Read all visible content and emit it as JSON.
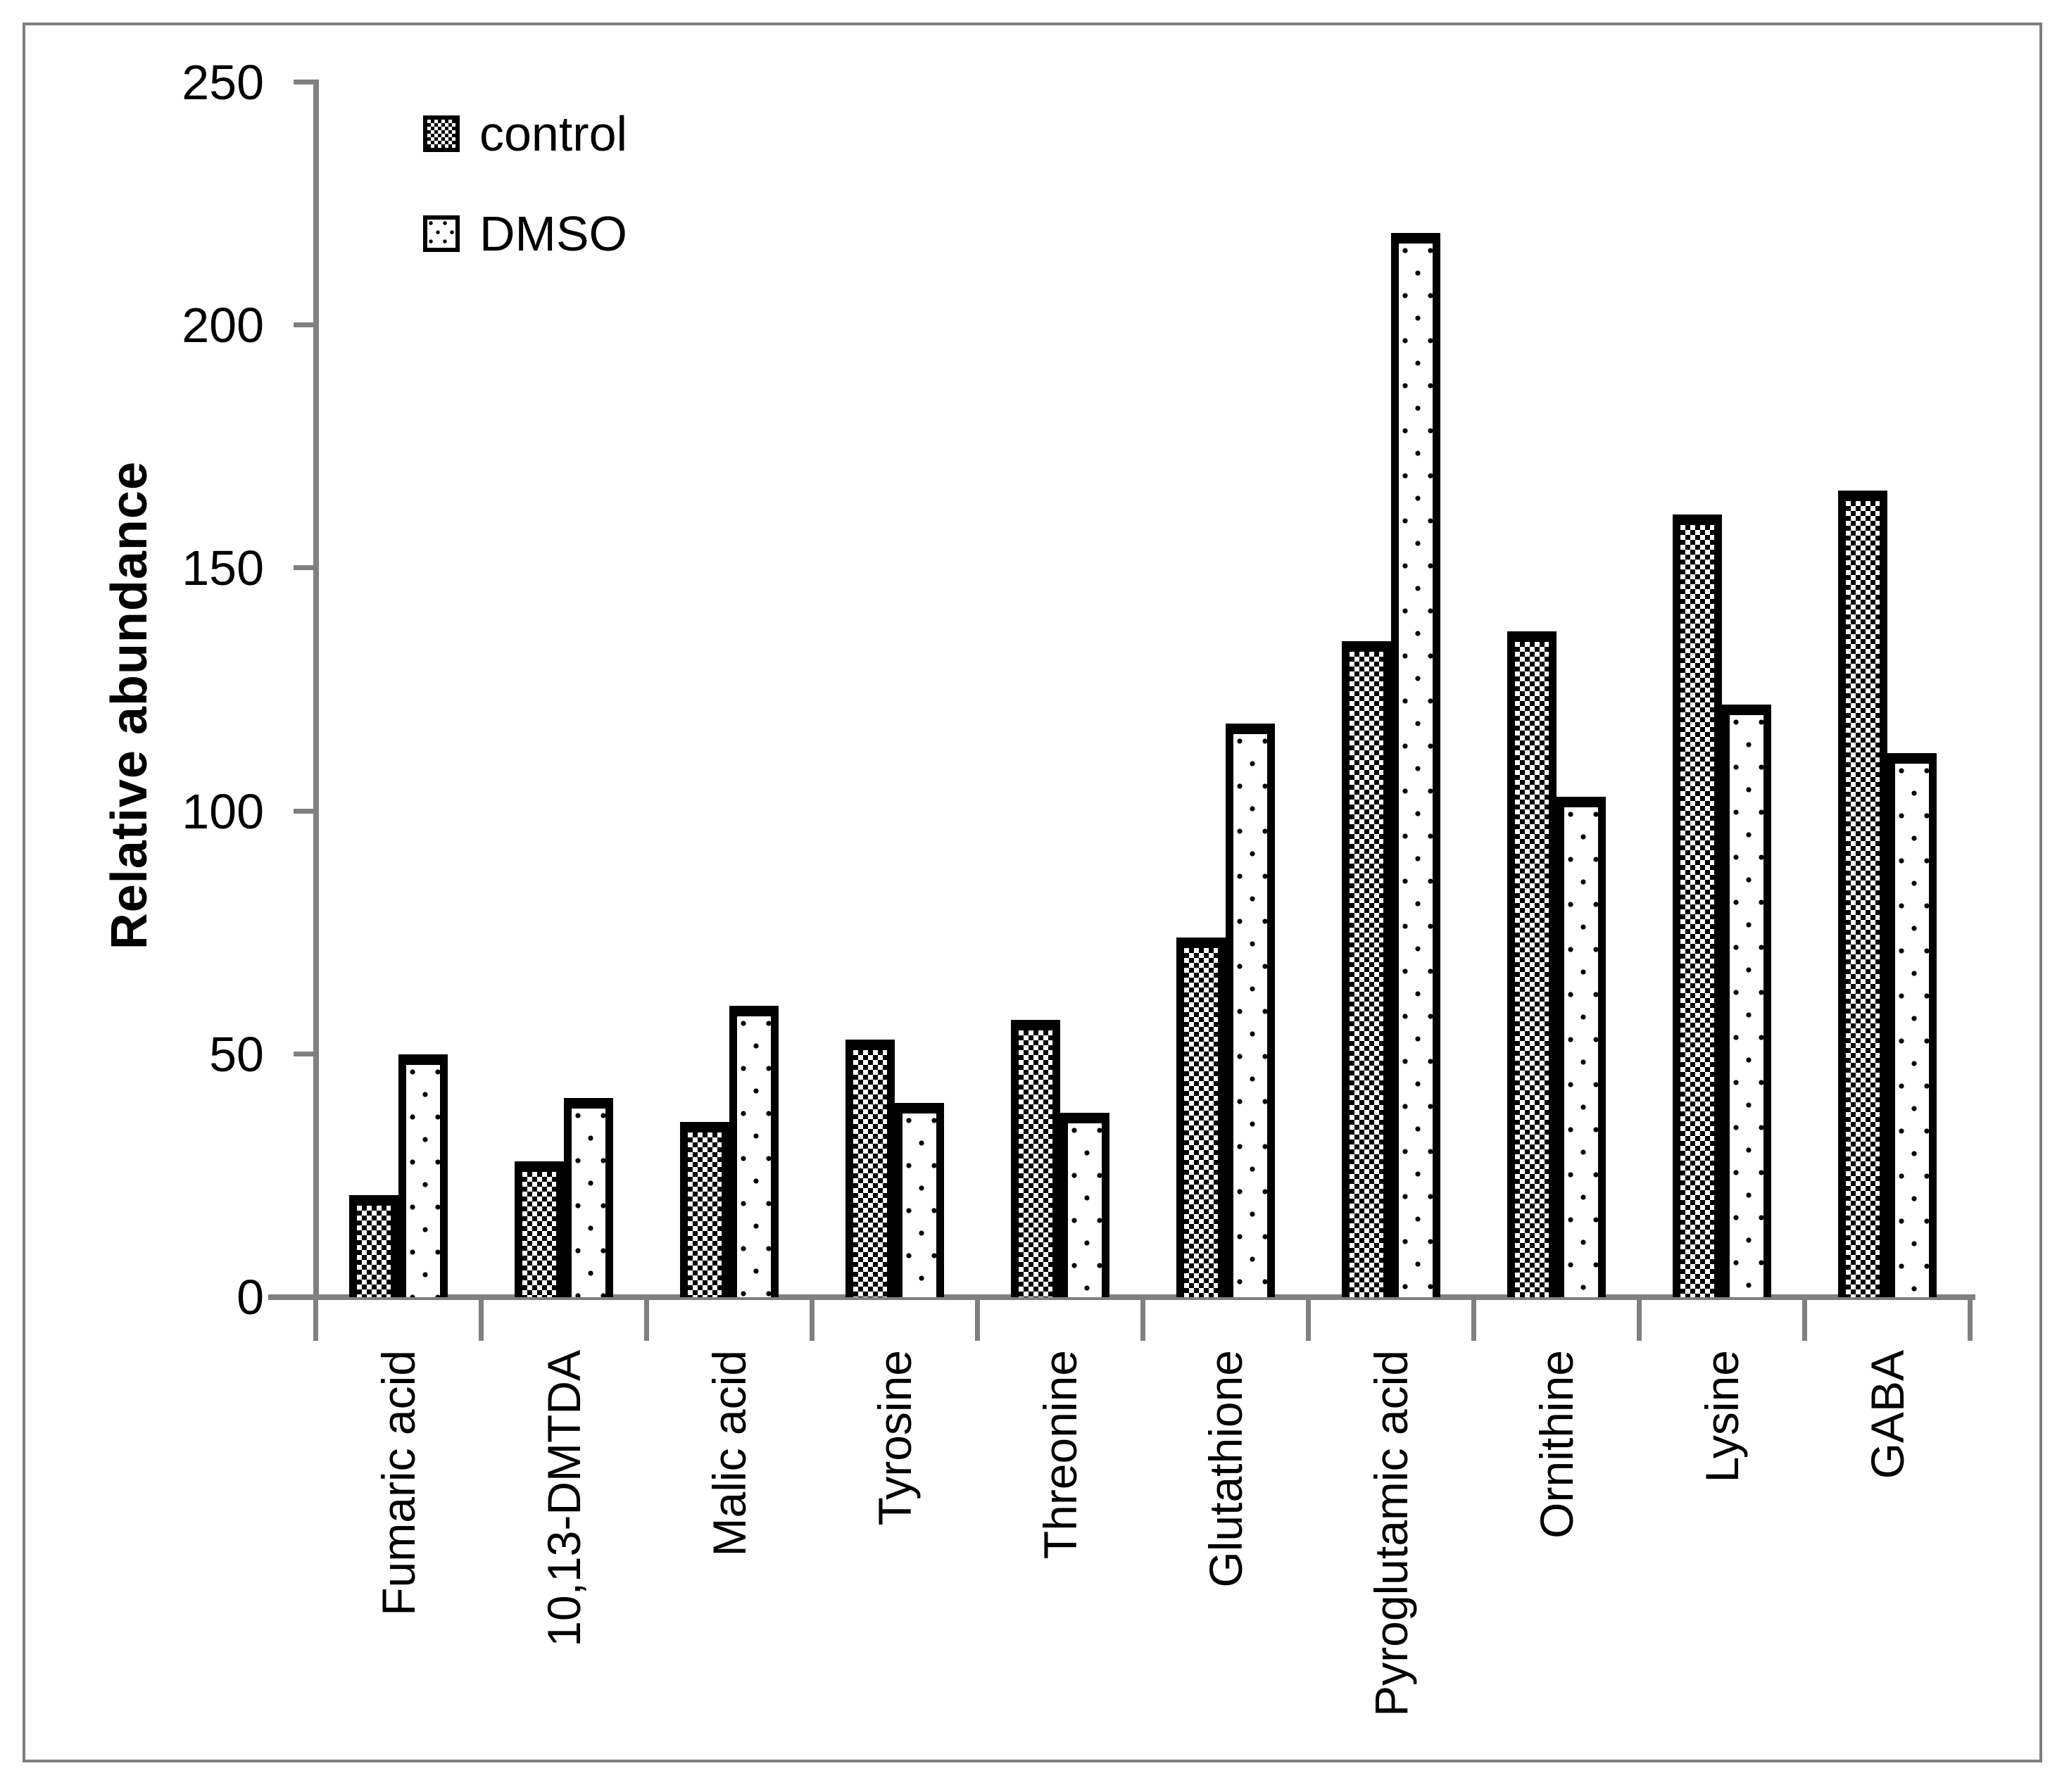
{
  "chart_data": {
    "type": "bar",
    "title": "",
    "ylabel": "Relative abundance",
    "xlabel": "",
    "ylim": [
      0,
      250
    ],
    "yticks": [
      0,
      50,
      100,
      150,
      200,
      250
    ],
    "grid": false,
    "legend_position": "top-left-inside",
    "categories": [
      "Fumaric acid",
      "10,13-DMTDA",
      "Malic acid",
      "Tyrosine",
      "Threonine",
      "Glutathione",
      "Pyroglutamic acid",
      "Ornithine",
      "Lysine",
      "GABA"
    ],
    "series": [
      {
        "name": "control",
        "pattern": "checkerboard",
        "values": [
          21,
          28,
          36,
          53,
          57,
          74,
          135,
          137,
          161,
          166
        ]
      },
      {
        "name": "DMSO",
        "pattern": "dots",
        "values": [
          50,
          41,
          60,
          40,
          38,
          118,
          219,
          103,
          122,
          112
        ]
      }
    ],
    "colors": {
      "bar_outline": "#000000",
      "bar_fill": "#ffffff",
      "axis": "#808080",
      "figure_border": "#7f7f7f",
      "background": "#ffffff",
      "text": "#000000"
    }
  }
}
